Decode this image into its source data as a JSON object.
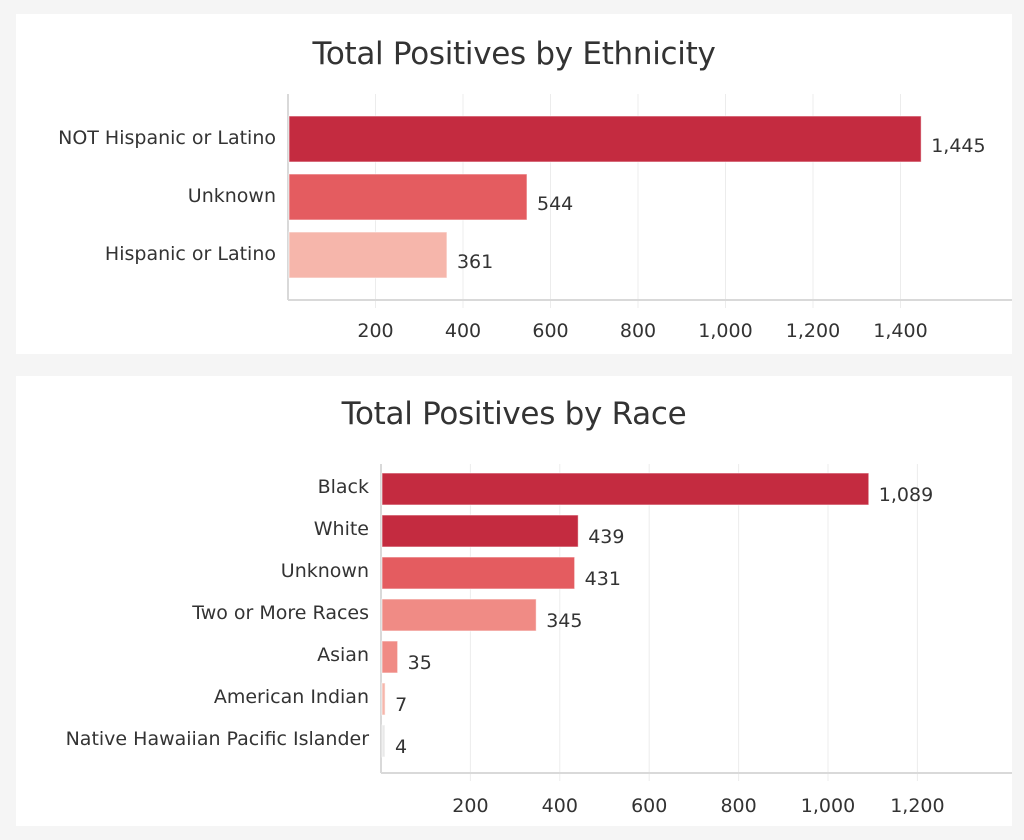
{
  "chart_data": [
    {
      "id": "ethnicity",
      "type": "bar",
      "orientation": "horizontal",
      "title": "Total Positives by Ethnicity",
      "xlabel": "",
      "ylabel": "",
      "categories": [
        "NOT Hispanic or Latino",
        "Unknown",
        "Hispanic or Latino"
      ],
      "values": [
        1445,
        544,
        361
      ],
      "value_labels": [
        "1,445",
        "544",
        "361"
      ],
      "colors": [
        "#c42b40",
        "#e45c60",
        "#f6b6ab"
      ],
      "xlim": [
        0,
        1650
      ],
      "xticks": [
        200,
        400,
        600,
        800,
        1000,
        1200,
        1400
      ],
      "xtick_labels": [
        "200",
        "400",
        "600",
        "800",
        "1,000",
        "1,200",
        "1,400"
      ],
      "grid": true,
      "legend": "none"
    },
    {
      "id": "race",
      "type": "bar",
      "orientation": "horizontal",
      "title": "Total Positives by Race",
      "xlabel": "",
      "ylabel": "",
      "categories": [
        "Black",
        "White",
        "Unknown",
        "Two or More Races",
        "Asian",
        "American Indian",
        "Native Hawaiian Pacific Islander"
      ],
      "values": [
        1089,
        439,
        431,
        345,
        35,
        7,
        4
      ],
      "value_labels": [
        "1,089",
        "439",
        "431",
        "345",
        "35",
        "7",
        "4"
      ],
      "colors": [
        "#c42b40",
        "#c42b40",
        "#e45c60",
        "#f08b85",
        "#f08b85",
        "#f6b6ab",
        "#e9e9e9"
      ],
      "xlim": [
        0,
        1400
      ],
      "xticks": [
        200,
        400,
        600,
        800,
        1000,
        1200
      ],
      "xtick_labels": [
        "200",
        "400",
        "600",
        "800",
        "1,000",
        "1,200"
      ],
      "grid": true,
      "legend": "none"
    }
  ]
}
